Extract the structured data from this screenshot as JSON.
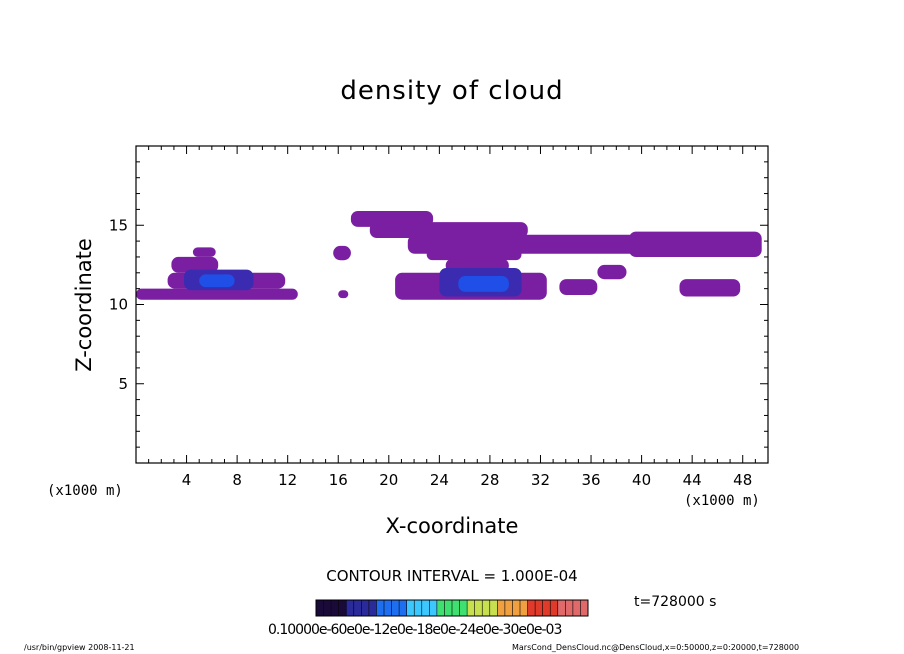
{
  "title": "density of cloud",
  "xlabel": "X-coordinate",
  "ylabel": "Z-coordinate",
  "x_unit_left": "(x1000 m)",
  "x_unit_right": "(x1000 m)",
  "contour_interval": "CONTOUR INTERVAL = 1.000E-04",
  "time_label": "t=728000 s",
  "colorbar_tick_text": "0.10000e-60e0e-12e0e-18e0e-24e0e-30e0e-03",
  "footer_left": "/usr/bin/gpview   2008-11-21",
  "footer_right": "MarsCond_DensCloud.nc@DensCloud,x=0:50000,z=0:20000,t=728000",
  "chart_data": {
    "type": "heatmap",
    "title": "density of cloud",
    "xlabel": "X-coordinate",
    "ylabel": "Z-coordinate",
    "xlim": [
      0,
      50
    ],
    "ylim": [
      0,
      20
    ],
    "x_ticks": [
      4,
      8,
      12,
      16,
      20,
      24,
      28,
      32,
      36,
      40,
      44,
      48
    ],
    "y_ticks": [
      5,
      10,
      15
    ],
    "units": "x1000 m",
    "colorbar": {
      "min": 0.0001,
      "max": 0.001,
      "interval": 0.0001,
      "palette": [
        "#1a0a3a",
        "#2a2a9a",
        "#1e6ef0",
        "#3cc8ff",
        "#40e070",
        "#c8e050",
        "#f0a040",
        "#e03a2a",
        "#e06a6a"
      ]
    },
    "colors": {
      "low": "#7b1fa2",
      "mid": "#3b2bb0",
      "high": "#1f4fe6",
      "peak": "#2a9ef0"
    },
    "regions": [
      {
        "level": "low",
        "x": [
          0.0,
          12.8
        ],
        "z": [
          10.3,
          11.0
        ]
      },
      {
        "level": "low",
        "x": [
          2.5,
          11.8
        ],
        "z": [
          11.0,
          12.0
        ]
      },
      {
        "level": "low",
        "x": [
          2.8,
          6.5
        ],
        "z": [
          12.0,
          13.0
        ]
      },
      {
        "level": "low",
        "x": [
          4.5,
          6.3
        ],
        "z": [
          13.0,
          13.6
        ]
      },
      {
        "level": "mid",
        "x": [
          3.8,
          9.3
        ],
        "z": [
          10.9,
          12.2
        ]
      },
      {
        "level": "high",
        "x": [
          5.0,
          7.8
        ],
        "z": [
          11.1,
          11.9
        ]
      },
      {
        "level": "low",
        "x": [
          15.6,
          17.0
        ],
        "z": [
          12.8,
          13.7
        ]
      },
      {
        "level": "low",
        "x": [
          16.0,
          16.8
        ],
        "z": [
          10.4,
          10.9
        ]
      },
      {
        "level": "low",
        "x": [
          17.0,
          23.5
        ],
        "z": [
          14.9,
          15.9
        ]
      },
      {
        "level": "low",
        "x": [
          18.5,
          31.0
        ],
        "z": [
          14.2,
          15.2
        ]
      },
      {
        "level": "low",
        "x": [
          21.5,
          45.0
        ],
        "z": [
          13.2,
          14.4
        ]
      },
      {
        "level": "low",
        "x": [
          23.0,
          30.5
        ],
        "z": [
          12.8,
          13.5
        ]
      },
      {
        "level": "low",
        "x": [
          39.0,
          49.5
        ],
        "z": [
          13.0,
          14.6
        ]
      },
      {
        "level": "low",
        "x": [
          20.5,
          32.5
        ],
        "z": [
          10.3,
          12.0
        ]
      },
      {
        "level": "low",
        "x": [
          24.5,
          29.5
        ],
        "z": [
          12.0,
          12.9
        ]
      },
      {
        "level": "mid",
        "x": [
          24.0,
          30.5
        ],
        "z": [
          10.5,
          12.3
        ]
      },
      {
        "level": "high",
        "x": [
          25.5,
          29.5
        ],
        "z": [
          10.8,
          11.8
        ]
      },
      {
        "level": "low",
        "x": [
          33.5,
          36.5
        ],
        "z": [
          10.6,
          11.6
        ]
      },
      {
        "level": "low",
        "x": [
          36.5,
          38.8
        ],
        "z": [
          11.6,
          12.5
        ]
      },
      {
        "level": "low",
        "x": [
          43.0,
          47.8
        ],
        "z": [
          10.5,
          11.6
        ]
      }
    ]
  }
}
